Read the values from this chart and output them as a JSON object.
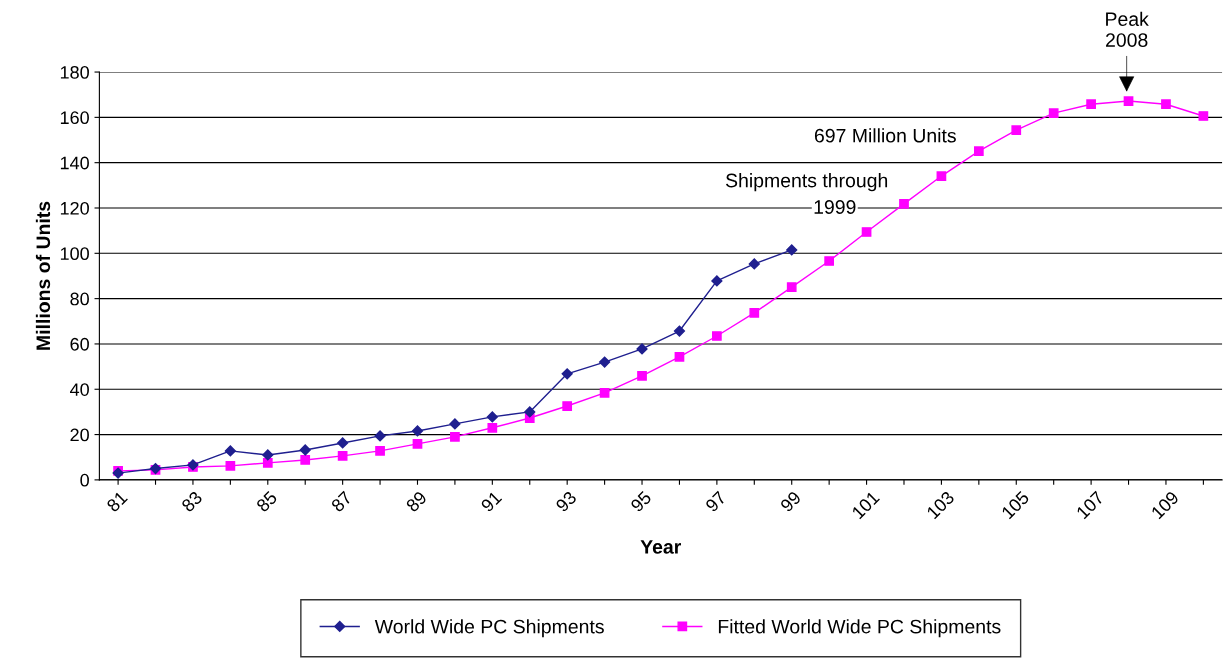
{
  "chart_data": {
    "type": "line",
    "xlabel": "Year",
    "ylabel": "Millions of Units",
    "categories": [
      "81",
      null,
      "83",
      null,
      "85",
      null,
      "87",
      null,
      "89",
      null,
      "91",
      null,
      "93",
      null,
      "95",
      null,
      "97",
      null,
      "99",
      null,
      "101",
      null,
      "103",
      null,
      "105",
      null,
      "107",
      null,
      "109",
      null
    ],
    "series": [
      {
        "name": "World Wide PC Shipments",
        "color": "#1f1f8f",
        "marker": "diamond",
        "values": [
          3,
          5,
          6.6,
          12.8,
          11,
          13.2,
          16.3,
          19.4,
          21.6,
          24.7,
          27.8,
          30,
          46.8,
          52,
          57.8,
          65.7,
          87.8,
          95.3,
          101.5,
          null,
          null,
          null,
          null,
          null,
          null,
          null,
          null,
          null,
          null,
          null
        ]
      },
      {
        "name": "Fitted World Wide PC Shipments",
        "color": "#ff00ff",
        "marker": "square",
        "values": [
          4,
          4.4,
          5.7,
          6.2,
          7.5,
          8.8,
          10.6,
          12.8,
          15.9,
          19,
          23,
          27.3,
          32.6,
          38.4,
          45.9,
          54.3,
          63.5,
          73.7,
          85.1,
          96.6,
          109.4,
          121.8,
          134.1,
          145.1,
          154.4,
          161.9,
          165.8,
          167.2,
          165.8,
          160.6
        ]
      }
    ],
    "ylim": [
      0,
      180
    ],
    "yticks": [
      0,
      20,
      40,
      60,
      80,
      100,
      120,
      140,
      160,
      180
    ],
    "grid": "y",
    "legend": "bottom",
    "annotations": [
      "Peak\n2008",
      "697 Million Units",
      "Shipments through",
      "1999"
    ]
  }
}
